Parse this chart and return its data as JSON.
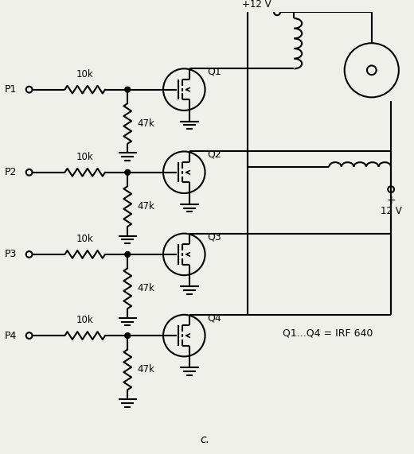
{
  "background_color": "#f0f0eb",
  "line_color": "#000000",
  "text_color": "#000000",
  "title": "c.",
  "annotation": "Q1...Q4 = IRF 640",
  "transistors": [
    "Q1",
    "Q2",
    "Q3",
    "Q4"
  ],
  "inputs": [
    "P1",
    "P2",
    "P3",
    "P4"
  ],
  "r_series": "10k",
  "r_shunt": "47k",
  "plus12v": "+12 V",
  "minus12v": "12 V",
  "plus_sign": "+"
}
